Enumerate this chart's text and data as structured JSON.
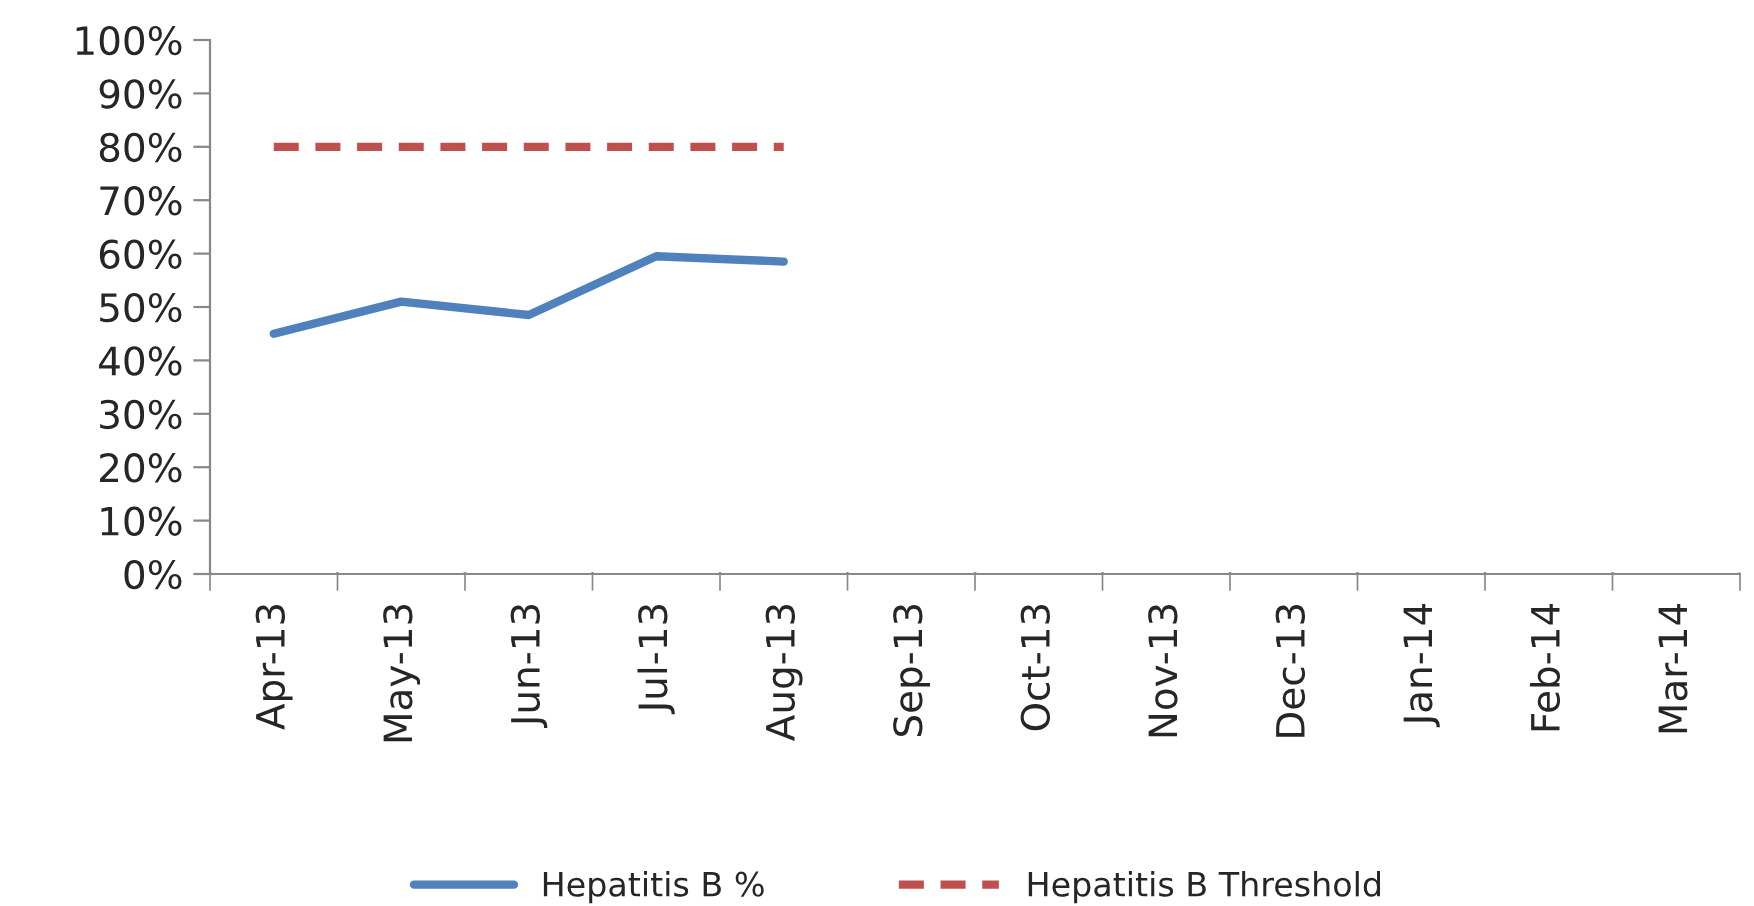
{
  "chart_data": {
    "type": "line",
    "categories": [
      "Apr-13",
      "May-13",
      "Jun-13",
      "Jul-13",
      "Aug-13",
      "Sep-13",
      "Oct-13",
      "Nov-13",
      "Dec-13",
      "Jan-14",
      "Feb-14",
      "Mar-14"
    ],
    "series": [
      {
        "name": "Hepatitis B %",
        "color": "#4f81bd",
        "line_style": "solid",
        "values": [
          45,
          51,
          48.5,
          59.5,
          58.5,
          null,
          null,
          null,
          null,
          null,
          null,
          null
        ]
      },
      {
        "name": "Hepatitis B Threshold",
        "color": "#c0504d",
        "line_style": "dashed",
        "values": [
          80,
          80,
          80,
          80,
          80,
          null,
          null,
          null,
          null,
          null,
          null,
          null
        ]
      }
    ],
    "ylim": [
      0,
      100
    ],
    "yticks": [
      {
        "value": 0,
        "label": "0%"
      },
      {
        "value": 10,
        "label": "10%"
      },
      {
        "value": 20,
        "label": "20%"
      },
      {
        "value": 30,
        "label": "30%"
      },
      {
        "value": 40,
        "label": "40%"
      },
      {
        "value": 50,
        "label": "50%"
      },
      {
        "value": 60,
        "label": "60%"
      },
      {
        "value": 70,
        "label": "70%"
      },
      {
        "value": 80,
        "label": "80%"
      },
      {
        "value": 90,
        "label": "90%"
      },
      {
        "value": 100,
        "label": "100%"
      }
    ],
    "grid": false,
    "legend": "bottom",
    "marker": "none"
  }
}
